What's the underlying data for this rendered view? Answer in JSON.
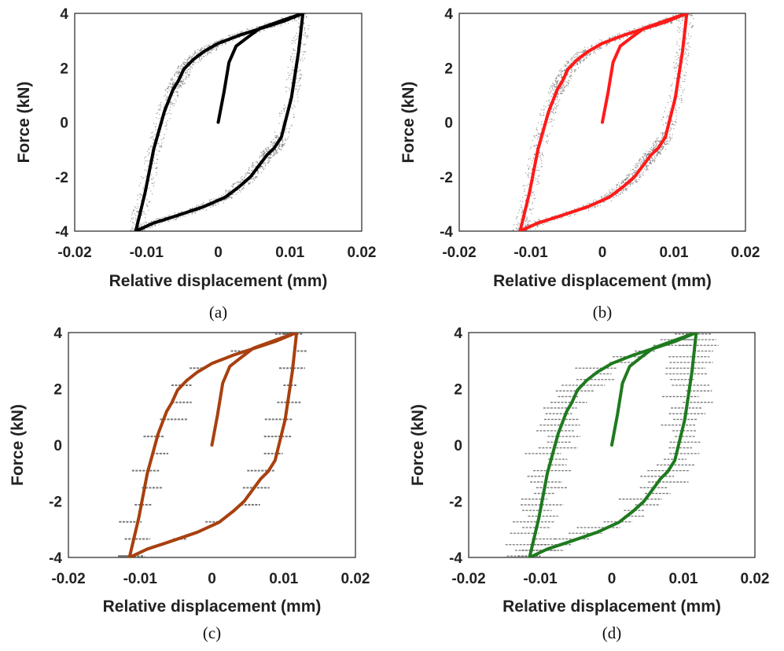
{
  "chart_data": [
    {
      "type": "line",
      "panel_label": "(a)",
      "xlabel": "Relative displacement (mm)",
      "ylabel": "Force (kN)",
      "xlim": [
        -0.02,
        0.02
      ],
      "ylim": [
        -4,
        4
      ],
      "xticks": [
        "-0.02",
        "-0.01",
        "0",
        "0.01",
        "0.02"
      ],
      "yticks": [
        "4",
        "2",
        "0",
        "-2",
        "-4"
      ],
      "scatter_style": "dense-dots",
      "series": [
        {
          "role": "initial",
          "color": "#000000",
          "x": [
            0,
            0.0008,
            0.0015,
            0.0025,
            0.004,
            0.0058,
            0.0085,
            0.0118
          ],
          "y": [
            0,
            1.1,
            2.2,
            2.8,
            3.1,
            3.45,
            3.7,
            4.0
          ]
        },
        {
          "role": "unloading",
          "color": "#000000",
          "x": [
            0.0118,
            0.0112,
            0.0102,
            0.0088,
            0.0078,
            0.0068,
            0.0058,
            0.0045,
            0.003,
            0.001,
            -0.002,
            -0.006,
            -0.009,
            -0.0115
          ],
          "y": [
            4.0,
            2.6,
            0.9,
            -0.55,
            -0.95,
            -1.2,
            -1.55,
            -2.0,
            -2.35,
            -2.75,
            -3.1,
            -3.45,
            -3.7,
            -4.0
          ]
        },
        {
          "role": "reloading",
          "color": "#000000",
          "x": [
            -0.0115,
            -0.0102,
            -0.009,
            -0.0075,
            -0.0063,
            -0.0056,
            -0.0048,
            -0.0035,
            -0.002,
            0.0,
            0.003,
            0.006,
            0.009,
            0.0118
          ],
          "y": [
            -4.0,
            -2.6,
            -1.0,
            0.4,
            1.2,
            1.5,
            1.95,
            2.3,
            2.6,
            2.9,
            3.2,
            3.45,
            3.7,
            4.0
          ]
        }
      ]
    },
    {
      "type": "line",
      "panel_label": "(b)",
      "xlabel": "Relative displacement (mm)",
      "ylabel": "Force (kN)",
      "xlim": [
        -0.02,
        0.02
      ],
      "ylim": [
        -4,
        4
      ],
      "xticks": [
        "-0.02",
        "-0.01",
        "0",
        "0.01",
        "0.02"
      ],
      "yticks": [
        "4",
        "2",
        "0",
        "-2",
        "-4"
      ],
      "scatter_style": "dense-dots",
      "series": [
        {
          "role": "initial",
          "color": "#ff1a1a",
          "x": [
            0,
            0.0008,
            0.0015,
            0.0025,
            0.004,
            0.0058,
            0.0085,
            0.0118
          ],
          "y": [
            0,
            1.1,
            2.2,
            2.8,
            3.1,
            3.45,
            3.7,
            4.0
          ]
        },
        {
          "role": "unloading",
          "color": "#ff1a1a",
          "x": [
            0.0118,
            0.0112,
            0.0102,
            0.0088,
            0.0078,
            0.0068,
            0.0058,
            0.0045,
            0.003,
            0.001,
            -0.002,
            -0.006,
            -0.009,
            -0.0115
          ],
          "y": [
            4.0,
            2.6,
            0.9,
            -0.55,
            -0.95,
            -1.2,
            -1.55,
            -2.0,
            -2.35,
            -2.75,
            -3.1,
            -3.45,
            -3.7,
            -4.0
          ]
        },
        {
          "role": "reloading",
          "color": "#ff1a1a",
          "x": [
            -0.0115,
            -0.0102,
            -0.009,
            -0.0075,
            -0.0063,
            -0.0056,
            -0.0048,
            -0.0035,
            -0.002,
            0.0,
            0.003,
            0.006,
            0.009,
            0.0118
          ],
          "y": [
            -4.0,
            -2.6,
            -1.0,
            0.4,
            1.2,
            1.5,
            1.95,
            2.3,
            2.6,
            2.9,
            3.2,
            3.45,
            3.7,
            4.0
          ]
        }
      ]
    },
    {
      "type": "line",
      "panel_label": "(c)",
      "xlabel": "Relative displacement (mm)",
      "ylabel": "Force (kN)",
      "xlim": [
        -0.02,
        0.02
      ],
      "ylim": [
        -4,
        4
      ],
      "xticks": [
        "-0.02",
        "-0.01",
        "0",
        "0.01",
        "0.02"
      ],
      "yticks": [
        "4",
        "2",
        "0",
        "-2",
        "-4"
      ],
      "scatter_style": "sparse-dashes",
      "series": [
        {
          "role": "initial",
          "color": "#a8400f",
          "x": [
            0,
            0.0008,
            0.0015,
            0.0025,
            0.004,
            0.0058,
            0.0085,
            0.0118
          ],
          "y": [
            0,
            1.1,
            2.2,
            2.8,
            3.1,
            3.45,
            3.7,
            4.0
          ]
        },
        {
          "role": "unloading",
          "color": "#a8400f",
          "x": [
            0.0118,
            0.0112,
            0.0102,
            0.0088,
            0.0078,
            0.0068,
            0.0058,
            0.0045,
            0.003,
            0.001,
            -0.002,
            -0.006,
            -0.009,
            -0.0115
          ],
          "y": [
            4.0,
            2.6,
            0.9,
            -0.55,
            -0.95,
            -1.2,
            -1.55,
            -2.0,
            -2.35,
            -2.75,
            -3.1,
            -3.45,
            -3.7,
            -4.0
          ]
        },
        {
          "role": "reloading",
          "color": "#a8400f",
          "x": [
            -0.0115,
            -0.0102,
            -0.009,
            -0.0075,
            -0.0063,
            -0.0056,
            -0.0048,
            -0.0035,
            -0.002,
            0.0,
            0.003,
            0.006,
            0.009,
            0.0118
          ],
          "y": [
            -4.0,
            -2.6,
            -1.0,
            0.4,
            1.2,
            1.5,
            1.95,
            2.3,
            2.6,
            2.9,
            3.2,
            3.45,
            3.7,
            4.0
          ]
        }
      ]
    },
    {
      "type": "line",
      "panel_label": "(d)",
      "xlabel": "Relative displacement (mm)",
      "ylabel": "Force (kN)",
      "xlim": [
        -0.02,
        0.02
      ],
      "ylim": [
        -4,
        4
      ],
      "xticks": [
        "-0.02",
        "-0.01",
        "0",
        "0.01",
        "0.02"
      ],
      "yticks": [
        "4",
        "2",
        "0",
        "-2",
        "-4"
      ],
      "scatter_style": "dense-dashes",
      "series": [
        {
          "role": "initial",
          "color": "#1e7a1e",
          "x": [
            0,
            0.0008,
            0.0015,
            0.0025,
            0.004,
            0.0058,
            0.0085,
            0.0118
          ],
          "y": [
            0,
            1.1,
            2.2,
            2.8,
            3.1,
            3.45,
            3.7,
            4.0
          ]
        },
        {
          "role": "unloading",
          "color": "#1e7a1e",
          "x": [
            0.0118,
            0.0112,
            0.0102,
            0.0088,
            0.0078,
            0.0068,
            0.0058,
            0.0045,
            0.003,
            0.001,
            -0.002,
            -0.006,
            -0.009,
            -0.0115
          ],
          "y": [
            4.0,
            2.6,
            0.9,
            -0.55,
            -0.95,
            -1.2,
            -1.55,
            -2.0,
            -2.35,
            -2.75,
            -3.1,
            -3.45,
            -3.7,
            -4.0
          ]
        },
        {
          "role": "reloading",
          "color": "#1e7a1e",
          "x": [
            -0.0115,
            -0.0102,
            -0.009,
            -0.0075,
            -0.0063,
            -0.0056,
            -0.0048,
            -0.0035,
            -0.002,
            0.0,
            0.003,
            0.006,
            0.009,
            0.0118
          ],
          "y": [
            -4.0,
            -2.6,
            -1.0,
            0.4,
            1.2,
            1.5,
            1.95,
            2.3,
            2.6,
            2.9,
            3.2,
            3.45,
            3.7,
            4.0
          ]
        }
      ]
    }
  ],
  "colors": {
    "axis": "#222222",
    "scatter": "#555555"
  }
}
